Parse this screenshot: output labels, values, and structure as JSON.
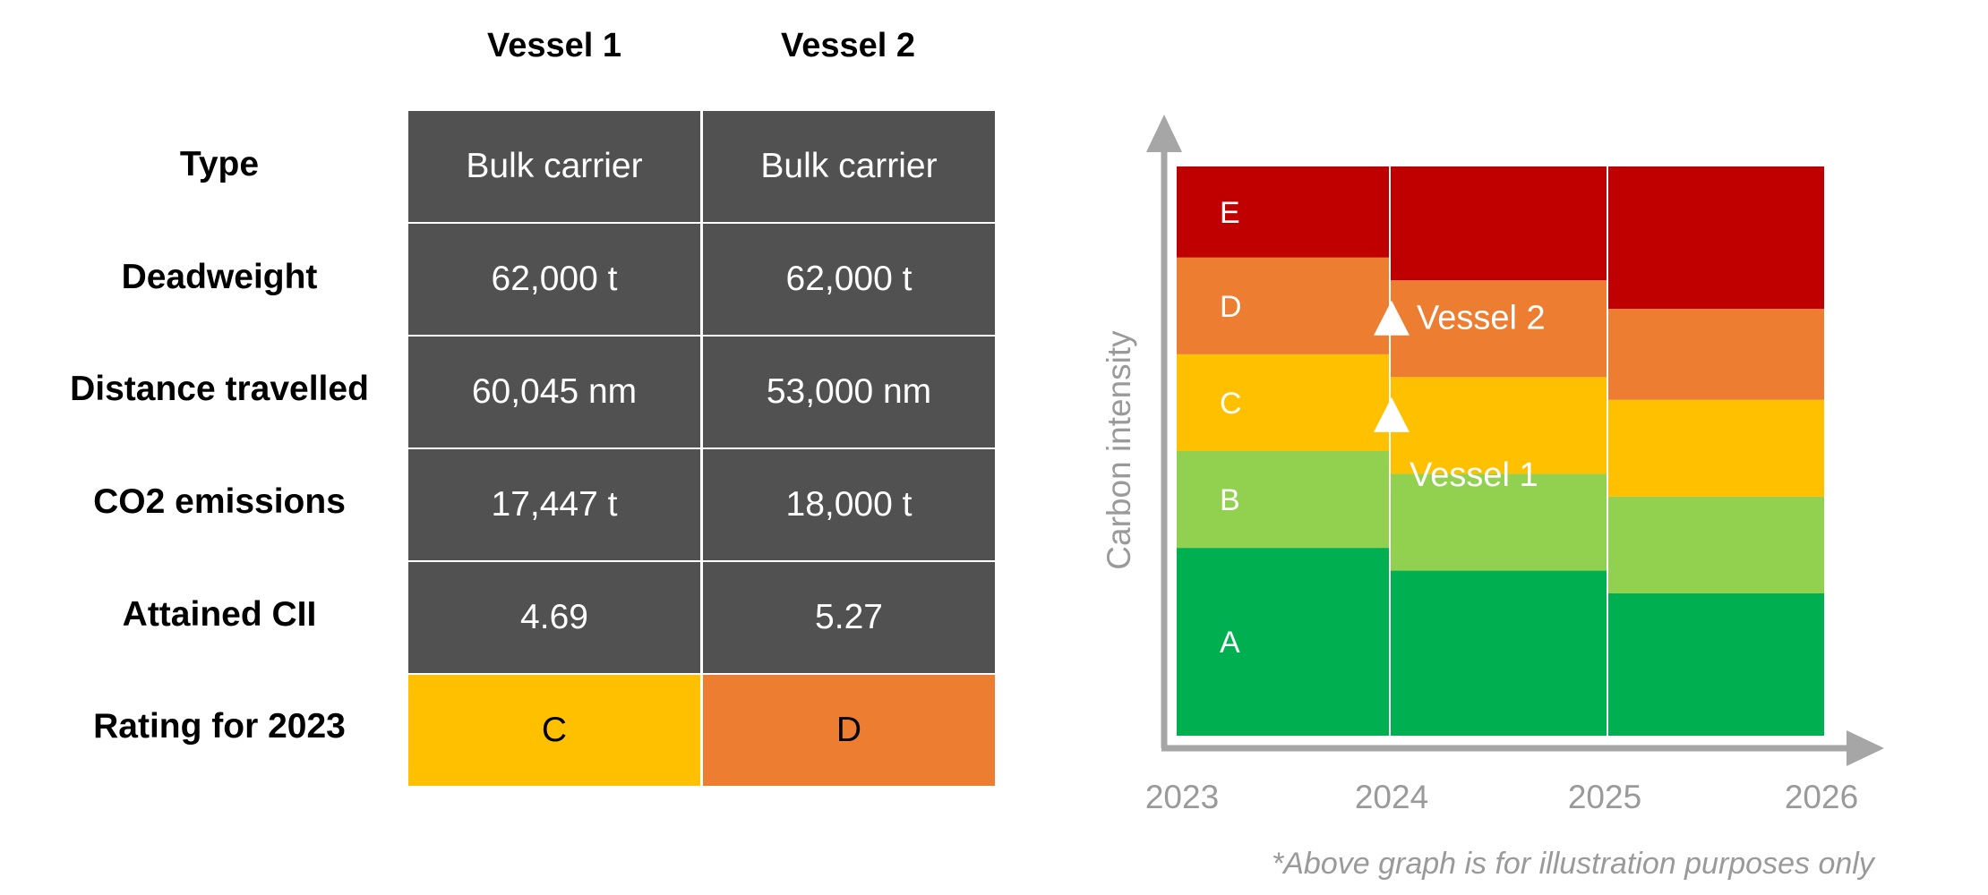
{
  "table": {
    "columns": [
      "Vessel 1",
      "Vessel 2"
    ],
    "rows": [
      {
        "label": "Type",
        "values": [
          "Bulk carrier",
          "Bulk carrier"
        ]
      },
      {
        "label": "Deadweight",
        "values": [
          "62,000 t",
          "62,000 t"
        ]
      },
      {
        "label": "Distance travelled",
        "values": [
          "60,045 nm",
          "53,000 nm"
        ]
      },
      {
        "label": "CO2 emissions",
        "values": [
          "17,447 t",
          "18,000 t"
        ]
      },
      {
        "label": "Attained CII",
        "values": [
          "4.69",
          "5.27"
        ]
      },
      {
        "label": "Rating for 2023",
        "values": [
          "C",
          "D"
        ]
      }
    ],
    "rating_colors": [
      "#FFC000",
      "#ED7D31"
    ]
  },
  "chart_data": {
    "type": "area",
    "title": "",
    "ylabel": "Carbon intensity",
    "xlabel": "",
    "x_ticks": [
      "2023",
      "2024",
      "2025",
      "2026"
    ],
    "periods": [
      "2023",
      "2024",
      "2025"
    ],
    "ylim": [
      0,
      100
    ],
    "bands": [
      {
        "name": "A",
        "color": "#00B050",
        "upper": [
          33,
          29,
          25
        ]
      },
      {
        "name": "B",
        "color": "#92D050",
        "upper": [
          50,
          46,
          42
        ]
      },
      {
        "name": "C",
        "color": "#FFC000",
        "upper": [
          67,
          63,
          59
        ]
      },
      {
        "name": "D",
        "color": "#ED7D31",
        "upper": [
          84,
          80,
          75
        ]
      },
      {
        "name": "E",
        "color": "#C00000",
        "upper": [
          100,
          100,
          100
        ]
      }
    ],
    "points": [
      {
        "name": "Vessel 1",
        "x": 2024,
        "y": 56
      },
      {
        "name": "Vessel 2",
        "x": 2024,
        "y": 73
      }
    ],
    "footnote": "*Above graph is for illustration purposes only"
  }
}
